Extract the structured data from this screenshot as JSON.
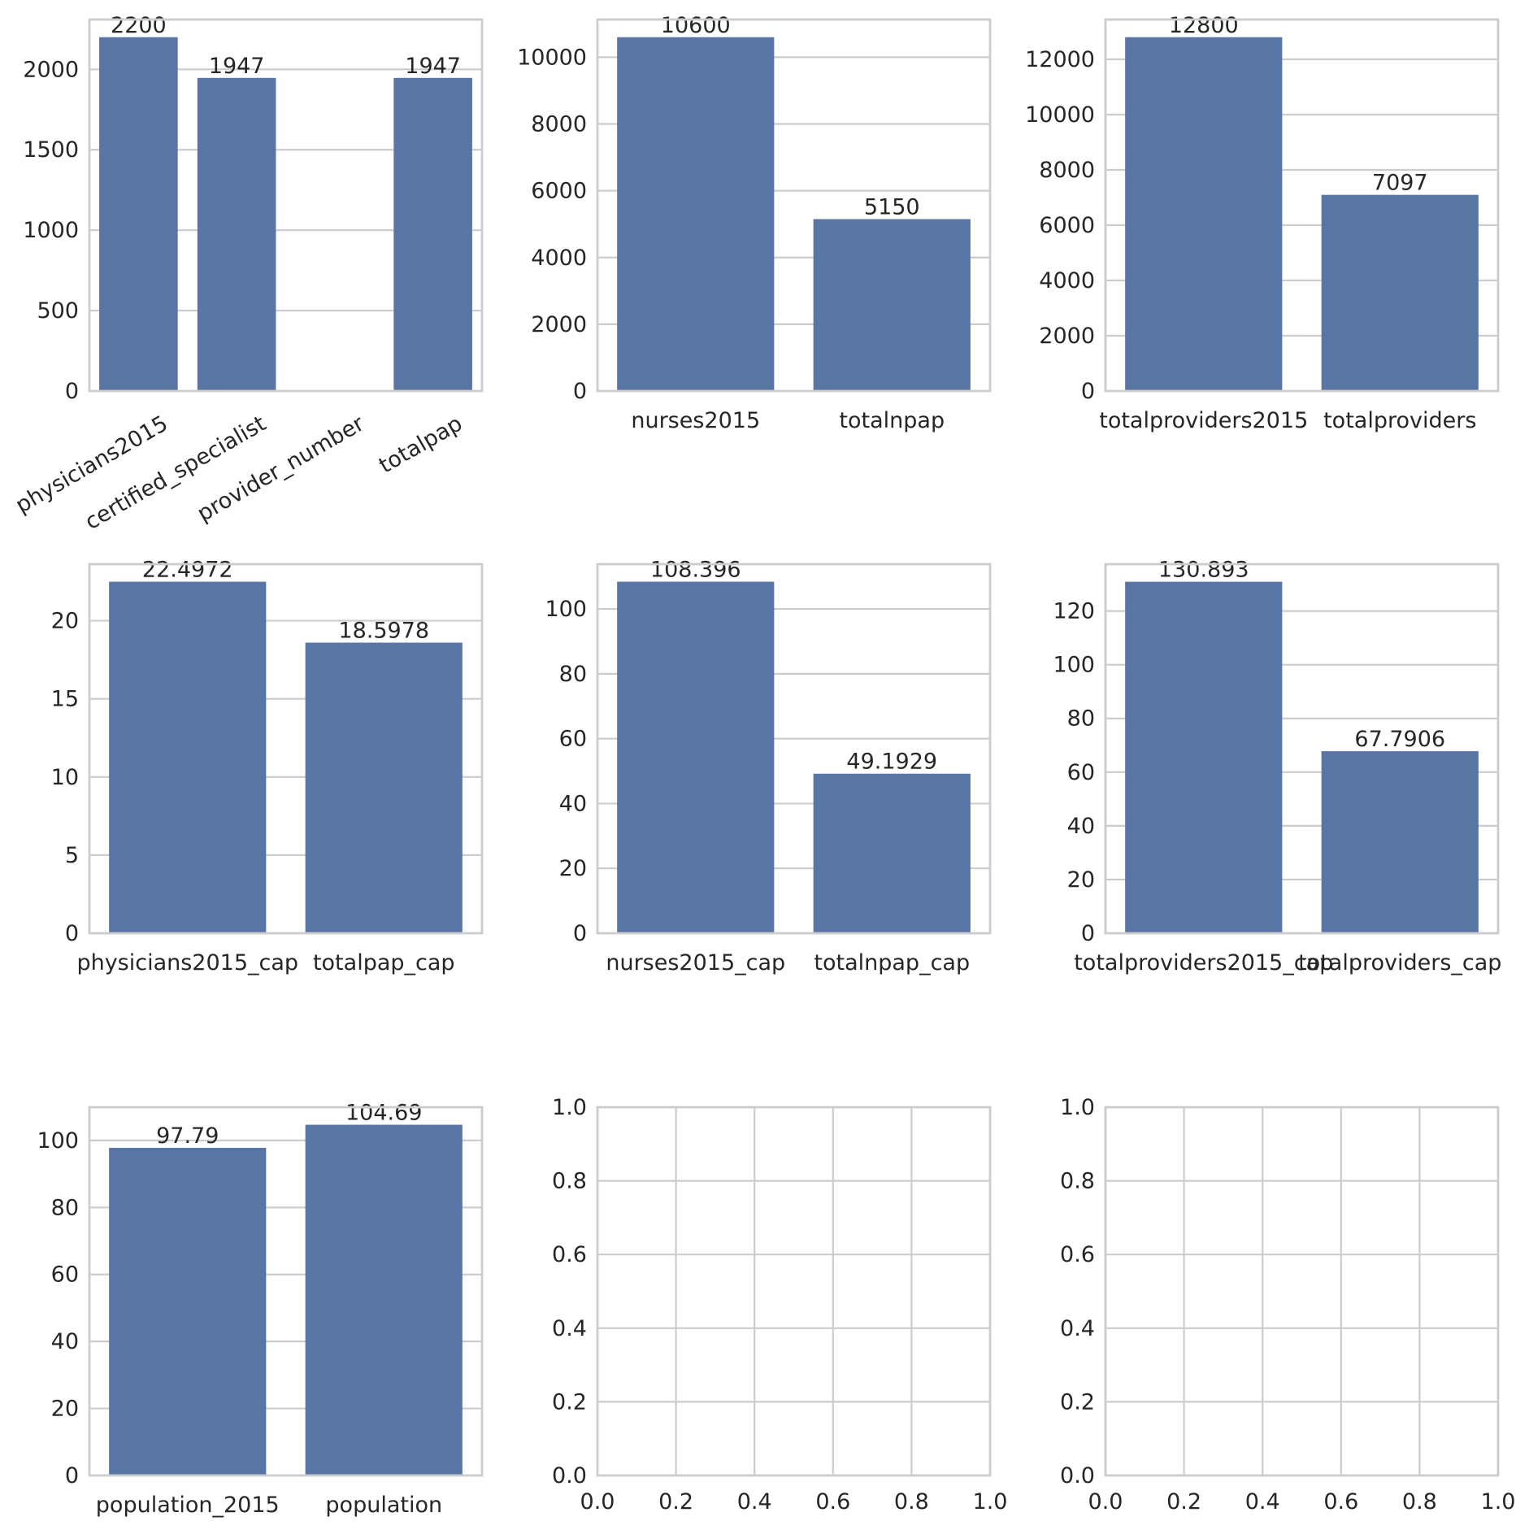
{
  "colors": {
    "bar": "#5975a4",
    "grid": "#cccccc",
    "spine": "#cccccc",
    "text": "#262626"
  },
  "chart_data": [
    {
      "type": "bar",
      "categories": [
        "physicians2015",
        "certified_specialist",
        "provider_number",
        "totalpap"
      ],
      "values": [
        2200,
        1947,
        null,
        1947
      ],
      "data_labels": [
        "2200",
        "1947",
        "",
        "1947"
      ],
      "yticks": [
        "0",
        "500",
        "1000",
        "1500",
        "2000"
      ],
      "ylim": [
        0,
        2310
      ],
      "grid": true
    },
    {
      "type": "bar",
      "categories": [
        "nurses2015",
        "totalnpap"
      ],
      "values": [
        10600,
        5150
      ],
      "data_labels": [
        "10600",
        "5150"
      ],
      "yticks": [
        "0",
        "2000",
        "4000",
        "6000",
        "8000",
        "10000"
      ],
      "ylim": [
        0,
        11130
      ],
      "grid": true
    },
    {
      "type": "bar",
      "categories": [
        "totalproviders2015",
        "totalproviders"
      ],
      "values": [
        12800,
        7097
      ],
      "data_labels": [
        "12800",
        "7097"
      ],
      "yticks": [
        "0",
        "2000",
        "4000",
        "6000",
        "8000",
        "10000",
        "12000"
      ],
      "ylim": [
        0,
        13440
      ],
      "grid": true
    },
    {
      "type": "bar",
      "categories": [
        "physicians2015_cap",
        "totalpap_cap"
      ],
      "values": [
        22.4972,
        18.5978
      ],
      "data_labels": [
        "22.4972",
        "18.5978"
      ],
      "yticks": [
        "0",
        "5",
        "10",
        "15",
        "20"
      ],
      "ylim": [
        0,
        23.62
      ],
      "grid": true
    },
    {
      "type": "bar",
      "categories": [
        "nurses2015_cap",
        "totalnpap_cap"
      ],
      "values": [
        108.396,
        49.1929
      ],
      "data_labels": [
        "108.396",
        "49.1929"
      ],
      "yticks": [
        "0",
        "20",
        "40",
        "60",
        "80",
        "100"
      ],
      "ylim": [
        0,
        113.8
      ],
      "grid": true
    },
    {
      "type": "bar",
      "categories": [
        "totalproviders2015_cap",
        "totalproviders_cap"
      ],
      "values": [
        130.893,
        67.7906
      ],
      "data_labels": [
        "130.893",
        "67.7906"
      ],
      "yticks": [
        "0",
        "20",
        "40",
        "60",
        "80",
        "100",
        "120"
      ],
      "ylim": [
        0,
        137.44
      ],
      "grid": true
    },
    {
      "type": "bar",
      "categories": [
        "population_2015",
        "population"
      ],
      "values": [
        97.79,
        104.69
      ],
      "data_labels": [
        "97.79",
        "104.69"
      ],
      "yticks": [
        "0",
        "20",
        "40",
        "60",
        "80",
        "100"
      ],
      "ylim": [
        0,
        109.92
      ],
      "grid": true
    },
    {
      "type": "empty",
      "xticks": [
        "0.0",
        "0.2",
        "0.4",
        "0.6",
        "0.8",
        "1.0"
      ],
      "yticks": [
        "0.0",
        "0.2",
        "0.4",
        "0.6",
        "0.8",
        "1.0"
      ],
      "xlim": [
        0,
        1
      ],
      "ylim": [
        0,
        1
      ],
      "grid": true
    },
    {
      "type": "empty",
      "xticks": [
        "0.0",
        "0.2",
        "0.4",
        "0.6",
        "0.8",
        "1.0"
      ],
      "yticks": [
        "0.0",
        "0.2",
        "0.4",
        "0.6",
        "0.8",
        "1.0"
      ],
      "xlim": [
        0,
        1
      ],
      "ylim": [
        0,
        1
      ],
      "grid": true
    }
  ]
}
